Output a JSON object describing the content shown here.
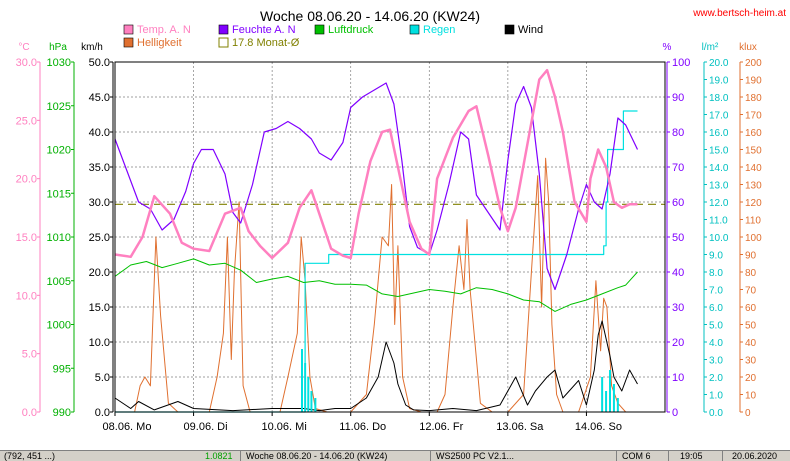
{
  "chart_data": {
    "type": "line",
    "title": "Woche 08.06.20 - 14.06.20 (KW24)",
    "website": "www.bertsch-heim.at",
    "categories": [
      "08.06. Mo",
      "09.06. Di",
      "10.06. Mi",
      "11.06. Do",
      "12.06. Fr",
      "13.06. Sa",
      "14.06. So"
    ],
    "axes": {
      "temp": {
        "unit": "°C",
        "range": [
          0,
          30
        ],
        "ticks": [
          "0.0",
          "5.0",
          "10.0",
          "15.0",
          "20.0",
          "25.0",
          "30.0"
        ],
        "color": "#ff80c0"
      },
      "pressure": {
        "unit": "hPa",
        "range": [
          990,
          1030
        ],
        "ticks": [
          "990",
          "995",
          "1000",
          "1005",
          "1010",
          "1015",
          "1020",
          "1025",
          "1030"
        ],
        "color": "#00b000"
      },
      "wind": {
        "unit": "km/h",
        "range": [
          0,
          50
        ],
        "ticks": [
          "0.0",
          "5.0",
          "10.0",
          "15.0",
          "20.0",
          "25.0",
          "30.0",
          "35.0",
          "40.0",
          "45.0",
          "50.0"
        ],
        "color": "#000000"
      },
      "humidity": {
        "unit": "%",
        "range": [
          0,
          100
        ],
        "ticks": [
          "0",
          "10",
          "20",
          "30",
          "40",
          "50",
          "60",
          "70",
          "80",
          "90",
          "100"
        ],
        "color": "#8000ff"
      },
      "rain": {
        "unit": "l/m²",
        "range": [
          0,
          20
        ],
        "ticks": [
          "0.0",
          "1.0",
          "2.0",
          "3.0",
          "4.0",
          "5.0",
          "6.0",
          "7.0",
          "8.0",
          "9.0",
          "10.0",
          "11.0",
          "12.0",
          "13.0",
          "14.0",
          "15.0",
          "16.0",
          "17.0",
          "18.0",
          "19.0",
          "20.0"
        ],
        "color": "#00c0c0"
      },
      "brightness": {
        "unit": "klux",
        "range": [
          0,
          200
        ],
        "ticks": [
          "0",
          "10",
          "20",
          "30",
          "40",
          "50",
          "60",
          "70",
          "80",
          "90",
          "100",
          "110",
          "120",
          "130",
          "140",
          "150",
          "160",
          "170",
          "180",
          "190",
          "200"
        ],
        "color": "#e07030"
      }
    },
    "legend": [
      {
        "label": "Temp. A. N",
        "color": "#ff80c0",
        "style": "box"
      },
      {
        "label": "Helligkeit",
        "color": "#e07030",
        "style": "box"
      },
      {
        "label": "Feuchte A. N",
        "color": "#8000ff",
        "style": "box"
      },
      {
        "label": "17.8 Monat-Ø",
        "color": "#808000",
        "style": "outline"
      },
      {
        "label": "Luftdruck",
        "color": "#00c000",
        "style": "box"
      },
      {
        "label": "Regen",
        "color": "#00e0e0",
        "style": "box"
      },
      {
        "label": "Wind",
        "color": "#000000",
        "style": "box"
      }
    ],
    "month_avg_temp": 17.8,
    "series": [
      {
        "name": "Temp. A. N",
        "axis": "temp",
        "color": "#ff80c0",
        "width": 2.5,
        "x": [
          0,
          0.2,
          0.35,
          0.5,
          0.7,
          0.85,
          1,
          1.2,
          1.4,
          1.6,
          1.7,
          1.85,
          2.0,
          2.2,
          2.35,
          2.5,
          2.6,
          2.75,
          2.9,
          3.0,
          3.1,
          3.25,
          3.4,
          3.5,
          3.6,
          3.75,
          3.9,
          4.0,
          4.1,
          4.3,
          4.5,
          4.6,
          4.75,
          4.9,
          5.0,
          5.1,
          5.25,
          5.4,
          5.5,
          5.6,
          5.7,
          5.85,
          6.0,
          6.05,
          6.15,
          6.25,
          6.35,
          6.45,
          6.55,
          6.65
        ],
        "y": [
          13.5,
          13.3,
          15,
          18.5,
          17,
          14.5,
          14,
          13.8,
          17,
          17.5,
          15.5,
          14.2,
          13.2,
          14.5,
          17.5,
          19,
          17,
          14,
          13.4,
          13.2,
          17,
          21.5,
          24,
          24.2,
          21,
          16.3,
          14,
          13.5,
          20,
          23.5,
          25.8,
          26.2,
          22,
          17.5,
          15.5,
          17.5,
          23,
          28.5,
          29.3,
          27,
          24,
          18,
          16.3,
          20,
          22.5,
          21,
          18,
          17.5,
          17.8,
          17.8
        ]
      },
      {
        "name": "Feuchte A. N",
        "axis": "humidity",
        "color": "#8000ff",
        "width": 1.2,
        "x": [
          0,
          0.15,
          0.3,
          0.45,
          0.6,
          0.75,
          0.9,
          1.0,
          1.1,
          1.25,
          1.4,
          1.5,
          1.6,
          1.75,
          1.9,
          2.05,
          2.2,
          2.35,
          2.5,
          2.6,
          2.75,
          2.9,
          3.0,
          3.15,
          3.3,
          3.45,
          3.55,
          3.65,
          3.75,
          3.85,
          4.0,
          4.1,
          4.25,
          4.4,
          4.5,
          4.6,
          4.75,
          4.9,
          5.0,
          5.1,
          5.2,
          5.3,
          5.4,
          5.5,
          5.6,
          5.75,
          5.9,
          6.0,
          6.1,
          6.2,
          6.3,
          6.4,
          6.5,
          6.65
        ],
        "y": [
          78,
          69,
          60,
          58,
          52,
          55,
          63,
          71,
          75,
          75,
          68,
          57,
          54,
          65,
          80,
          81,
          83,
          81,
          78,
          74,
          72,
          77,
          87,
          90,
          92,
          94,
          88,
          72,
          53,
          47,
          45,
          52,
          65,
          80,
          78,
          62,
          57,
          52,
          72,
          88,
          93,
          87,
          68,
          41,
          35,
          45,
          58,
          65,
          60,
          58,
          68,
          84,
          82,
          75
        ]
      },
      {
        "name": "Luftdruck",
        "axis": "pressure",
        "color": "#00c000",
        "width": 1,
        "x": [
          0,
          0.2,
          0.4,
          0.6,
          0.8,
          1.0,
          1.2,
          1.4,
          1.6,
          1.8,
          2.0,
          2.2,
          2.4,
          2.6,
          2.8,
          3.0,
          3.2,
          3.4,
          3.6,
          3.8,
          4.0,
          4.2,
          4.4,
          4.6,
          4.8,
          5.0,
          5.2,
          5.4,
          5.6,
          5.8,
          6.0,
          6.2,
          6.4,
          6.5,
          6.65
        ],
        "y": [
          1005.5,
          1006.8,
          1007.2,
          1006.5,
          1007,
          1007.5,
          1006.8,
          1007,
          1006.2,
          1004.8,
          1005.2,
          1005.5,
          1004.8,
          1005,
          1004.6,
          1004.6,
          1004.5,
          1003.5,
          1003.2,
          1003.6,
          1004,
          1003.8,
          1003.5,
          1004.2,
          1004,
          1003.5,
          1002.8,
          1002.6,
          1001.5,
          1002.3,
          1002.8,
          1003.5,
          1004.2,
          1004.5,
          1006
        ]
      },
      {
        "name": "Regen",
        "axis": "rain",
        "color": "#00e0e0",
        "width": 1.2,
        "step": true,
        "x": [
          0,
          2.4,
          2.42,
          2.7,
          2.72,
          6.2,
          6.22,
          6.25,
          6.27,
          6.45,
          6.47,
          6.65
        ],
        "y": [
          0,
          0,
          8.5,
          8.5,
          9,
          9,
          9.5,
          12,
          15,
          15,
          17.2,
          17.2
        ]
      },
      {
        "name": "Wind",
        "axis": "wind",
        "color": "#000000",
        "width": 1,
        "x": [
          0,
          0.2,
          0.3,
          0.5,
          0.8,
          1.0,
          1.5,
          2.0,
          2.4,
          2.6,
          2.8,
          3.0,
          3.2,
          3.35,
          3.45,
          3.55,
          3.6,
          3.7,
          3.8,
          4.0,
          4.3,
          4.6,
          4.9,
          5.1,
          5.25,
          5.35,
          5.5,
          5.6,
          5.7,
          5.9,
          6.0,
          6.1,
          6.15,
          6.2,
          6.3,
          6.35,
          6.45,
          6.55,
          6.65
        ],
        "y": [
          2,
          0.5,
          1.5,
          0.3,
          1.5,
          0.5,
          0.2,
          0.5,
          0.5,
          0.2,
          0.5,
          0.5,
          2,
          5,
          10,
          7,
          4,
          1,
          0.3,
          0.2,
          0.5,
          0.2,
          1,
          5,
          1,
          3,
          5,
          6,
          2,
          4.5,
          1,
          6,
          11,
          13,
          8,
          5,
          3,
          6,
          4
        ]
      },
      {
        "name": "Helligkeit",
        "axis": "brightness",
        "color": "#e07030",
        "width": 1,
        "thin": true,
        "x": [
          0,
          0.25,
          0.32,
          0.38,
          0.45,
          0.52,
          0.58,
          0.68,
          0.8,
          1.0,
          1.2,
          1.3,
          1.38,
          1.43,
          1.48,
          1.52,
          1.58,
          1.63,
          1.72,
          1.9,
          2.1,
          2.2,
          2.32,
          2.37,
          2.42,
          2.48,
          2.55,
          2.7,
          3.0,
          3.2,
          3.3,
          3.4,
          3.48,
          3.52,
          3.56,
          3.6,
          3.66,
          3.75,
          3.9,
          4.1,
          4.2,
          4.3,
          4.38,
          4.44,
          4.48,
          4.52,
          4.58,
          4.65,
          4.8,
          5.0,
          5.2,
          5.3,
          5.38,
          5.43,
          5.48,
          5.52,
          5.56,
          5.62,
          5.7,
          5.9,
          6.05,
          6.12,
          6.18,
          6.22,
          6.26,
          6.32,
          6.4,
          6.5,
          6.65
        ],
        "y": [
          0,
          0,
          15,
          20,
          15,
          100,
          55,
          5,
          0,
          0,
          0,
          20,
          45,
          100,
          30,
          80,
          120,
          15,
          0,
          0,
          0,
          20,
          45,
          100,
          75,
          20,
          2,
          0,
          0,
          10,
          50,
          100,
          95,
          130,
          50,
          95,
          20,
          2,
          0,
          0,
          10,
          60,
          95,
          70,
          110,
          70,
          40,
          5,
          0,
          0,
          10,
          80,
          135,
          60,
          145,
          120,
          50,
          10,
          0,
          0,
          20,
          75,
          35,
          65,
          60,
          15,
          5,
          0,
          0
        ]
      }
    ]
  },
  "status": {
    "coords": "(792, 451 ...)",
    "value": "1.0821",
    "title": "Woche 08.06.20 - 14.06.20 (KW24)",
    "file": "WS2500 PC V2.1...",
    "port": "COM 6",
    "time": "19:05",
    "date": "20.06.2020"
  }
}
